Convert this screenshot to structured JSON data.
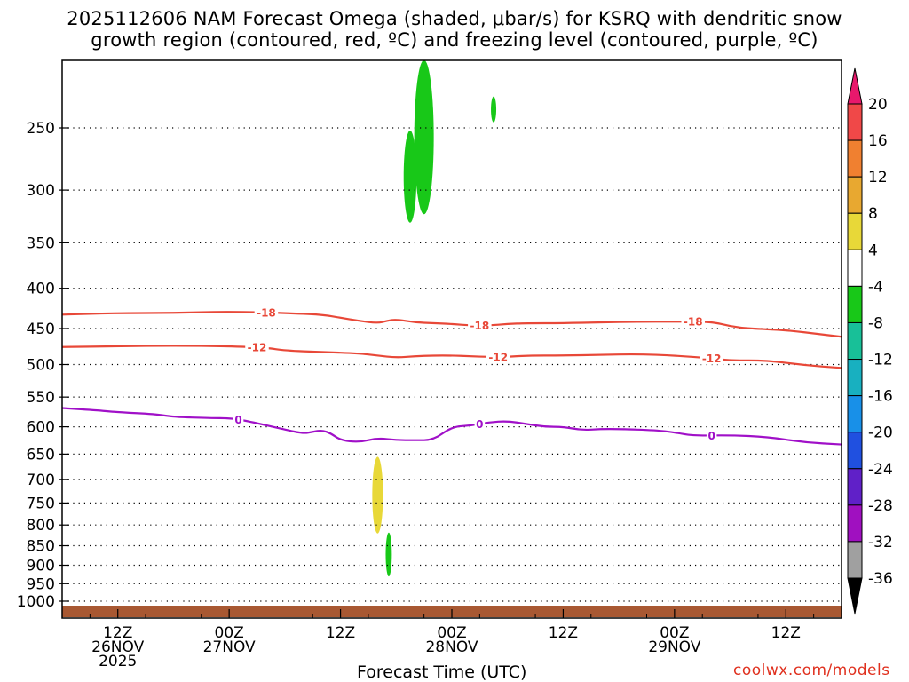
{
  "chart_data": {
    "type": "heatmap",
    "title_line1": "2025112606 NAM Forecast Omega (shaded, μbar/s) for KSRQ with dendritic snow",
    "title_line2": "growth region (contoured, red, ºC) and freezing level (contoured, purple, ºC)",
    "xlabel": "Forecast Time (UTC)",
    "credit": "coolwx.com/models",
    "y_axis": {
      "scale": "log-pressure",
      "units": "hPa",
      "ylim": [
        1000,
        200
      ],
      "ticks": [
        250,
        300,
        350,
        400,
        450,
        500,
        550,
        600,
        650,
        700,
        750,
        800,
        850,
        900,
        950,
        1000
      ]
    },
    "x_axis": {
      "units": "hours since 2025-11-26 06Z",
      "xlim": [
        0,
        84
      ],
      "ticks": [
        {
          "hour": 6,
          "line1": "12Z",
          "line2": "26NOV",
          "line3": "2025"
        },
        {
          "hour": 18,
          "line1": "00Z",
          "line2": "27NOV",
          "line3": ""
        },
        {
          "hour": 30,
          "line1": "12Z",
          "line2": "",
          "line3": ""
        },
        {
          "hour": 42,
          "line1": "00Z",
          "line2": "28NOV",
          "line3": ""
        },
        {
          "hour": 54,
          "line1": "12Z",
          "line2": "",
          "line3": ""
        },
        {
          "hour": 66,
          "line1": "00Z",
          "line2": "29NOV",
          "line3": ""
        },
        {
          "hour": 78,
          "line1": "12Z",
          "line2": "",
          "line3": ""
        }
      ]
    },
    "colorbar": {
      "levels": [
        20,
        16,
        12,
        8,
        4,
        -4,
        -8,
        -12,
        -16,
        -20,
        -24,
        -28,
        -32,
        -36
      ],
      "colors": [
        "#f04848",
        "#f08030",
        "#e8a830",
        "#e8d838",
        "#ffffff",
        "#18c818",
        "#18c098",
        "#18b0c0",
        "#1890e8",
        "#2050e0",
        "#6020c8",
        "#a010c0",
        "#a0a0a0"
      ],
      "over_color": "#e8186c",
      "under_color": "#000000"
    },
    "omega_features": [
      {
        "hour": 37.5,
        "p_top": 252,
        "p_bottom": 330,
        "value_color": "#18c818"
      },
      {
        "hour": 39,
        "p_top": 205,
        "p_bottom": 322,
        "value_color": "#18c818"
      },
      {
        "hour": 46.5,
        "p_top": 228,
        "p_bottom": 246,
        "value_color": "#18c818"
      },
      {
        "hour": 34,
        "p_top": 655,
        "p_bottom": 820,
        "value_color": "#e8d838"
      },
      {
        "hour": 35.2,
        "p_top": 818,
        "p_bottom": 930,
        "value_color": "#18c818"
      }
    ],
    "series": [
      {
        "name": "-18",
        "color": "#e84838",
        "label_hours": [
          22,
          45,
          68
        ],
        "x": [
          0,
          6,
          12,
          18,
          24,
          28,
          30,
          32,
          34,
          35,
          36,
          38,
          40,
          42,
          44,
          46,
          48,
          50,
          54,
          58,
          62,
          66,
          70,
          72,
          74,
          78,
          82,
          84
        ],
        "y": [
          432,
          430,
          430,
          428,
          430,
          432,
          436,
          440,
          443,
          440,
          438,
          442,
          443,
          444,
          446,
          446,
          444,
          443,
          443,
          442,
          441,
          441,
          441,
          447,
          450,
          452,
          458,
          461
        ]
      },
      {
        "name": "-12",
        "color": "#e84838",
        "label_hours": [
          21,
          47,
          70
        ],
        "x": [
          0,
          6,
          12,
          18,
          22,
          24,
          28,
          32,
          34,
          36,
          38,
          40,
          42,
          44,
          46,
          48,
          50,
          54,
          58,
          62,
          66,
          70,
          72,
          76,
          80,
          84
        ],
        "y": [
          475,
          474,
          473,
          474,
          476,
          480,
          482,
          484,
          487,
          490,
          488,
          487,
          487,
          488,
          489,
          489,
          487,
          487,
          486,
          485,
          487,
          491,
          494,
          494,
          501,
          505
        ]
      },
      {
        "name": "0",
        "color": "#a010c8",
        "label_hours": [
          19,
          45,
          70
        ],
        "x": [
          0,
          4,
          6,
          10,
          12,
          16,
          18,
          20,
          24,
          26,
          27,
          28,
          29,
          30,
          32,
          34,
          36,
          38,
          40,
          42,
          44,
          46,
          48,
          50,
          52,
          54,
          56,
          58,
          60,
          64,
          66,
          68,
          72,
          76,
          80,
          84
        ],
        "y": [
          568,
          572,
          575,
          578,
          583,
          585,
          585,
          590,
          605,
          612,
          609,
          606,
          612,
          624,
          628,
          620,
          624,
          624,
          624,
          600,
          598,
          592,
          590,
          595,
          600,
          600,
          606,
          604,
          604,
          606,
          610,
          616,
          615,
          618,
          628,
          632
        ]
      }
    ]
  }
}
